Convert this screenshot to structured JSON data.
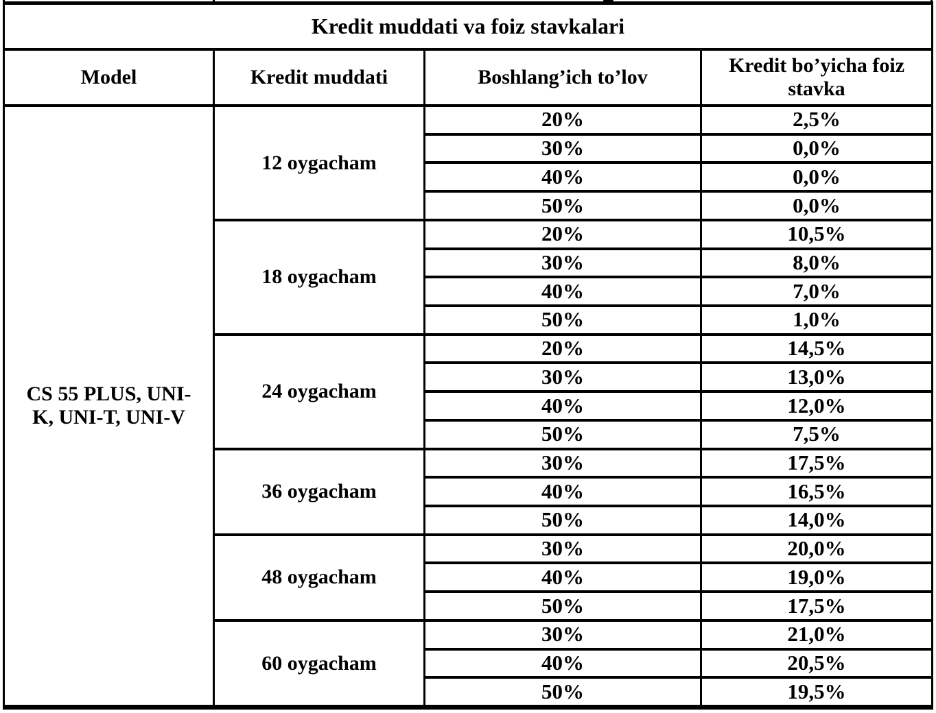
{
  "colors": {
    "border": "#000000",
    "background": "#ffffff",
    "text": "#000000"
  },
  "table": {
    "title": "Kredit muddati va foiz stavkalari",
    "columns": [
      "Model",
      "Kredit muddati",
      "Boshlang’ich to’lov",
      "Kredit bo’yicha foiz stavka"
    ],
    "model_lines": [
      "CS 55 PLUS, UNI-",
      "K, UNI-T, UNI-V"
    ],
    "groups": [
      {
        "term": "12 oygacham",
        "rows": [
          {
            "down": "20%",
            "rate": "2,5%"
          },
          {
            "down": "30%",
            "rate": "0,0%"
          },
          {
            "down": "40%",
            "rate": "0,0%"
          },
          {
            "down": "50%",
            "rate": "0,0%"
          }
        ]
      },
      {
        "term": "18 oygacham",
        "rows": [
          {
            "down": "20%",
            "rate": "10,5%"
          },
          {
            "down": "30%",
            "rate": "8,0%"
          },
          {
            "down": "40%",
            "rate": "7,0%"
          },
          {
            "down": "50%",
            "rate": "1,0%"
          }
        ]
      },
      {
        "term": "24 oygacham",
        "rows": [
          {
            "down": "20%",
            "rate": "14,5%"
          },
          {
            "down": "30%",
            "rate": "13,0%"
          },
          {
            "down": "40%",
            "rate": "12,0%"
          },
          {
            "down": "50%",
            "rate": "7,5%"
          }
        ]
      },
      {
        "term": "36 oygacham",
        "rows": [
          {
            "down": "30%",
            "rate": "17,5%"
          },
          {
            "down": "40%",
            "rate": "16,5%"
          },
          {
            "down": "50%",
            "rate": "14,0%"
          }
        ]
      },
      {
        "term": "48 oygacham",
        "rows": [
          {
            "down": "30%",
            "rate": "20,0%"
          },
          {
            "down": "40%",
            "rate": "19,0%"
          },
          {
            "down": "50%",
            "rate": "17,5%"
          }
        ]
      },
      {
        "term": "60 oygacham",
        "rows": [
          {
            "down": "30%",
            "rate": "21,0%"
          },
          {
            "down": "40%",
            "rate": "20,5%"
          },
          {
            "down": "50%",
            "rate": "19,5%"
          }
        ]
      }
    ]
  }
}
